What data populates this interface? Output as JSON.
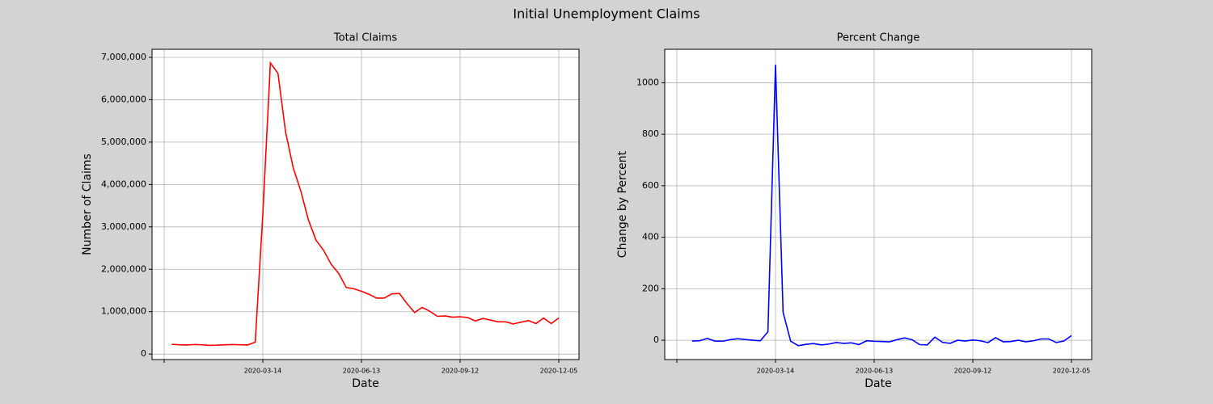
{
  "title": "Initial Unemployment Claims",
  "chart_data": [
    {
      "type": "line",
      "title": "Total Claims",
      "xlabel": "Date",
      "ylabel": "Number of Claims",
      "categories": [
        null,
        null,
        null,
        null,
        null,
        null,
        null,
        null,
        null,
        null,
        null,
        null,
        null,
        "2020-03-14",
        null,
        null,
        null,
        null,
        null,
        null,
        null,
        null,
        null,
        null,
        null,
        null,
        "2020-06-13",
        null,
        null,
        null,
        null,
        null,
        null,
        null,
        null,
        null,
        null,
        null,
        null,
        "2020-09-12",
        null,
        null,
        null,
        null,
        null,
        null,
        null,
        null,
        null,
        null,
        null,
        null,
        "2020-12-05"
      ],
      "xticks": [
        0,
        13,
        26,
        39,
        52
      ],
      "series": [
        {
          "color": "#ff0000",
          "values": [
            null,
            230000,
            220000,
            215000,
            225000,
            218000,
            205000,
            210000,
            220000,
            225000,
            220000,
            215000,
            280000,
            3300000,
            6870000,
            6620000,
            5240000,
            4400000,
            3850000,
            3170000,
            2690000,
            2450000,
            2120000,
            1900000,
            1570000,
            1540000,
            1480000,
            1410000,
            1320000,
            1320000,
            1420000,
            1430000,
            1190000,
            980000,
            1100000,
            1010000,
            890000,
            900000,
            870000,
            880000,
            860000,
            780000,
            840000,
            800000,
            760000,
            760000,
            710000,
            750000,
            790000,
            720000,
            850000,
            720000,
            850000
          ]
        }
      ],
      "ylim": [
        -130000,
        7190000
      ],
      "yticks": [
        0,
        {
          "value": 1000000,
          "label": "1,000,000"
        },
        {
          "value": 2000000,
          "label": "2,000,000"
        },
        {
          "value": 3000000,
          "label": "3,000,000"
        },
        {
          "value": 4000000,
          "label": "4,000,000"
        },
        {
          "value": 5000000,
          "label": "5,000,000"
        },
        {
          "value": 6000000,
          "label": "6,000,000"
        },
        {
          "value": 7000000,
          "label": "7,000,000"
        }
      ],
      "grid": true
    },
    {
      "type": "line",
      "title": "Percent Change",
      "xlabel": "Date",
      "ylabel": "Change by Percent",
      "categories": [
        null,
        null,
        null,
        null,
        null,
        null,
        null,
        null,
        null,
        null,
        null,
        null,
        null,
        "2020-03-14",
        null,
        null,
        null,
        null,
        null,
        null,
        null,
        null,
        null,
        null,
        null,
        null,
        "2020-06-13",
        null,
        null,
        null,
        null,
        null,
        null,
        null,
        null,
        null,
        null,
        null,
        null,
        "2020-09-12",
        null,
        null,
        null,
        null,
        null,
        null,
        null,
        null,
        null,
        null,
        null,
        null,
        "2020-12-05"
      ],
      "xticks": [
        0,
        13,
        26,
        39,
        52
      ],
      "series": [
        {
          "color": "#0000ff",
          "values": [
            null,
            null,
            -3,
            -2,
            7,
            -3,
            -4,
            2,
            6,
            3,
            0,
            -2,
            33,
            1070,
            108,
            -4,
            -21,
            -16,
            -13,
            -18,
            -15,
            -9,
            -12,
            -10,
            -17,
            -2,
            -4,
            -5,
            -6,
            2,
            9,
            2,
            -17,
            -18,
            12,
            -8,
            -12,
            0,
            -3,
            1,
            -2,
            -9,
            10,
            -6,
            -5,
            0,
            -6,
            -2,
            5,
            5,
            -9,
            -3,
            18
          ]
        }
      ],
      "ylim": [
        -75,
        1130
      ],
      "yticks": [
        0,
        200,
        400,
        600,
        800,
        1000
      ],
      "grid": true
    }
  ]
}
